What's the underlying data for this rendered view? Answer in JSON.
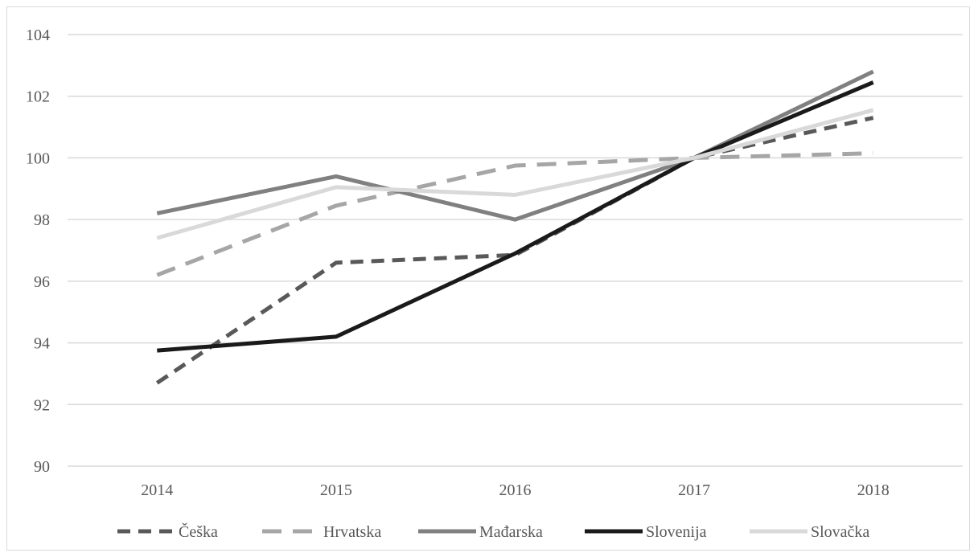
{
  "chart_data": {
    "type": "line",
    "title": "",
    "xlabel": "",
    "ylabel": "",
    "categories": [
      "2014",
      "2015",
      "2016",
      "2017",
      "2018"
    ],
    "ylim": [
      90,
      104
    ],
    "yticks": [
      90,
      92,
      94,
      96,
      98,
      100,
      102,
      104
    ],
    "grid": true,
    "legend_position": "bottom",
    "series": [
      {
        "name": "Češka",
        "values": [
          92.7,
          96.6,
          96.85,
          100,
          101.3
        ],
        "color": "#595959",
        "dash": "dashed"
      },
      {
        "name": "Hrvatska",
        "values": [
          96.2,
          98.45,
          99.75,
          100,
          100.15
        ],
        "color": "#a6a6a6",
        "dash": "long-dashed"
      },
      {
        "name": "Mađarska",
        "values": [
          98.2,
          99.4,
          98.0,
          100,
          102.8
        ],
        "color": "#808080",
        "dash": "solid"
      },
      {
        "name": "Slovenija",
        "values": [
          93.75,
          94.2,
          96.9,
          100,
          102.45
        ],
        "color": "#1a1a1a",
        "dash": "solid"
      },
      {
        "name": "Slovačka",
        "values": [
          97.4,
          99.05,
          98.8,
          100,
          101.55
        ],
        "color": "#d9d9d9",
        "dash": "solid"
      }
    ]
  }
}
